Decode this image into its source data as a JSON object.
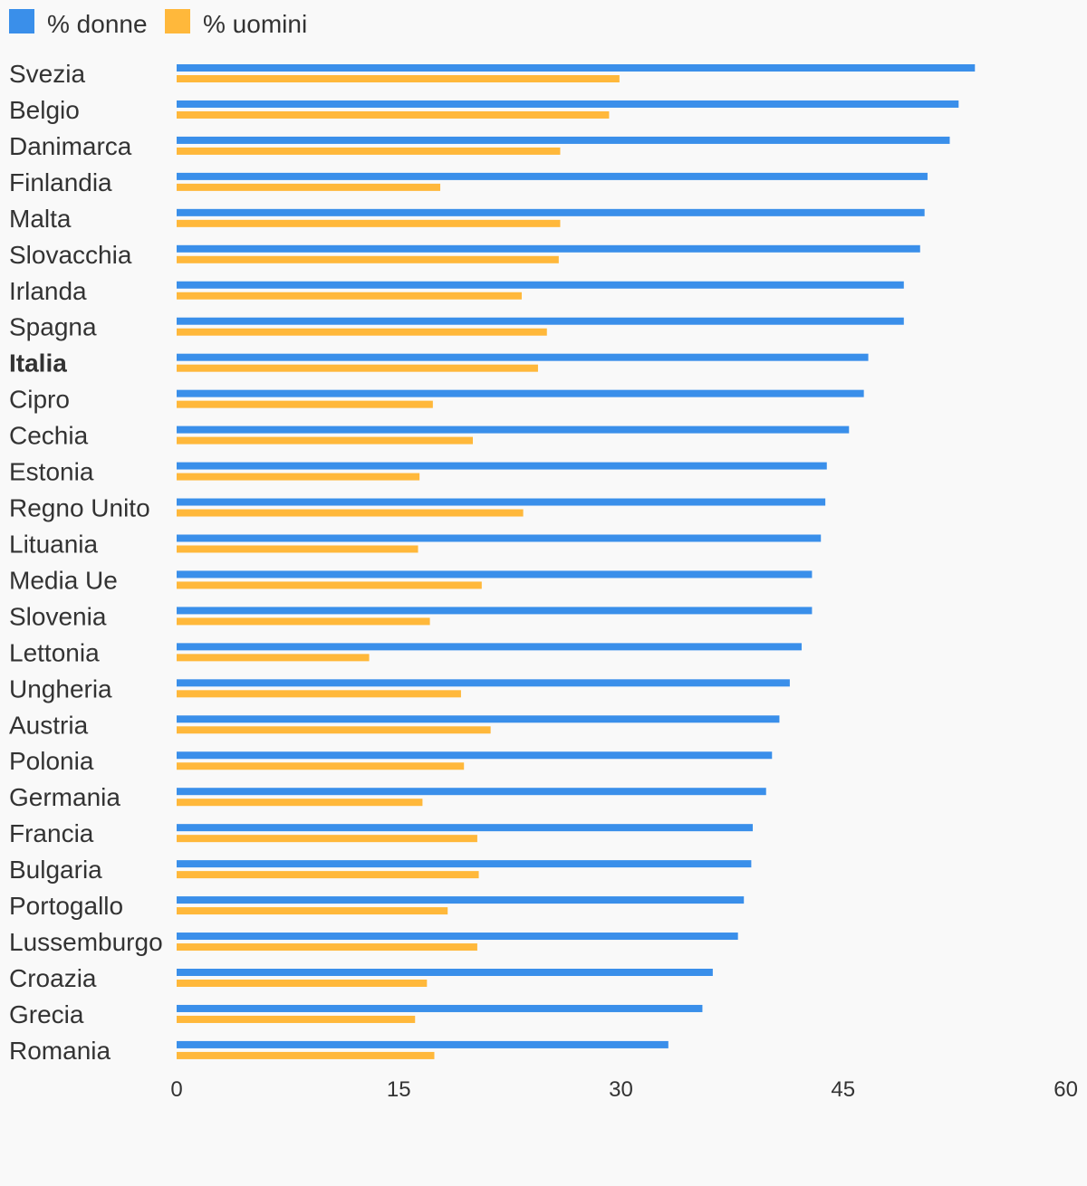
{
  "chart_data": {
    "type": "bar",
    "orientation": "horizontal",
    "xlim": [
      0,
      60
    ],
    "x_ticks": [
      0,
      15,
      30,
      45,
      60
    ],
    "grid": false,
    "legend_position": "top-left",
    "highlight_category": "Italia",
    "categories": [
      "Svezia",
      "Belgio",
      "Danimarca",
      "Finlandia",
      "Malta",
      "Slovacchia",
      "Irlanda",
      "Spagna",
      "Italia",
      "Cipro",
      "Cechia",
      "Estonia",
      "Regno Unito",
      "Lituania",
      "Media Ue",
      "Slovenia",
      "Lettonia",
      "Ungheria",
      "Austria",
      "Polonia",
      "Germania",
      "Francia",
      "Bulgaria",
      "Portogallo",
      "Lussemburgo",
      "Croazia",
      "Grecia",
      "Romania"
    ],
    "series": [
      {
        "name": "% donne",
        "color": "#3a8fea",
        "values": [
          53.9,
          52.8,
          52.2,
          50.7,
          50.5,
          50.2,
          49.1,
          49.1,
          46.7,
          46.4,
          45.4,
          43.9,
          43.8,
          43.5,
          42.9,
          42.9,
          42.2,
          41.4,
          40.7,
          40.2,
          39.8,
          38.9,
          38.8,
          38.3,
          37.9,
          36.2,
          35.5,
          33.2
        ]
      },
      {
        "name": "% uomini",
        "color": "#ffb83b",
        "values": [
          29.9,
          29.2,
          25.9,
          17.8,
          25.9,
          25.8,
          23.3,
          25.0,
          24.4,
          17.3,
          20.0,
          16.4,
          23.4,
          16.3,
          20.6,
          17.1,
          13.0,
          19.2,
          21.2,
          19.4,
          16.6,
          20.3,
          20.4,
          18.3,
          20.3,
          16.9,
          16.1,
          17.4
        ]
      }
    ]
  }
}
